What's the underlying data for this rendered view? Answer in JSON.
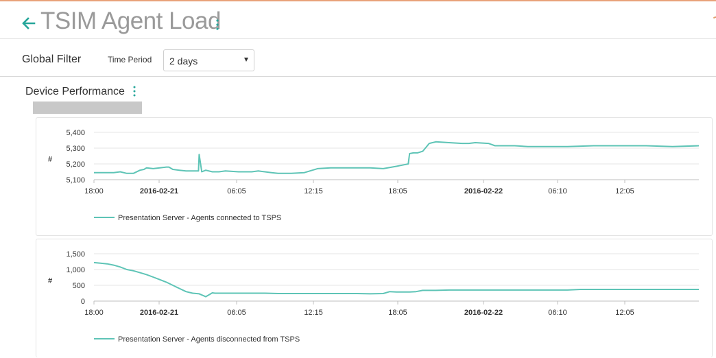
{
  "header": {
    "title": "TSIM Agent Load"
  },
  "filter": {
    "label": "Global Filter",
    "period_label": "Time Period",
    "period_value": "2 days"
  },
  "section": {
    "title": "Device Performance"
  },
  "colors": {
    "accent": "#26a69a",
    "series": "#5ec4b6",
    "grid": "#e6e6e6"
  },
  "x_axis_ticks": [
    {
      "label": "18:00",
      "bold": false
    },
    {
      "label": "2016-02-21",
      "bold": true
    },
    {
      "label": "06:05",
      "bold": false
    },
    {
      "label": "12:15",
      "bold": false
    },
    {
      "label": "18:05",
      "bold": false
    },
    {
      "label": "2016-02-22",
      "bold": true
    },
    {
      "label": "06:10",
      "bold": false
    },
    {
      "label": "12:05",
      "bold": false
    }
  ],
  "chart_data": [
    {
      "type": "line",
      "title": "",
      "ylabel": "#",
      "ylim": [
        5100,
        5400
      ],
      "yticks": [
        "5,100",
        "5,200",
        "5,300",
        "5,400"
      ],
      "grid": true,
      "legend": "bottom-left",
      "series": [
        {
          "name": "Presentation Server - Agents connected to TSPS",
          "x": [
            0,
            1,
            1.5,
            2,
            2.5,
            3,
            3.5,
            3.8,
            4,
            4.5,
            5,
            5.5,
            5.7,
            6,
            6.5,
            7,
            7.5,
            7.95,
            8,
            8.2,
            8.5,
            9,
            9.5,
            10,
            11,
            12,
            12.5,
            13,
            13.5,
            14,
            15,
            16,
            17,
            18,
            18.5,
            19,
            20,
            21,
            22,
            23,
            23.3,
            23.6,
            23.9,
            24,
            24.3,
            24.6,
            25,
            25.5,
            26,
            27,
            28,
            28.5,
            29,
            30,
            30.5,
            31,
            32,
            33,
            33.5,
            34,
            35,
            36,
            38,
            39,
            40,
            42,
            44,
            46
          ],
          "y": [
            5145,
            5145,
            5145,
            5150,
            5140,
            5140,
            5160,
            5165,
            5175,
            5170,
            5175,
            5180,
            5180,
            5165,
            5160,
            5155,
            5155,
            5155,
            5260,
            5150,
            5160,
            5150,
            5150,
            5155,
            5150,
            5150,
            5155,
            5150,
            5145,
            5140,
            5140,
            5145,
            5170,
            5175,
            5175,
            5175,
            5175,
            5175,
            5170,
            5185,
            5190,
            5195,
            5200,
            5265,
            5270,
            5270,
            5280,
            5330,
            5340,
            5335,
            5330,
            5330,
            5335,
            5330,
            5315,
            5315,
            5315,
            5310,
            5310,
            5310,
            5310,
            5310,
            5315,
            5315,
            5315,
            5315,
            5310,
            5315
          ]
        }
      ]
    },
    {
      "type": "line",
      "title": "",
      "ylabel": "#",
      "ylim": [
        0,
        1500
      ],
      "yticks": [
        "0",
        "500",
        "1,000",
        "1,500"
      ],
      "grid": true,
      "legend": "bottom-left",
      "series": [
        {
          "name": "Presentation Server - Agents disconnected from TSPS",
          "x": [
            0,
            0.5,
            1,
            1.5,
            2,
            2.5,
            3,
            3.5,
            4,
            4.5,
            5,
            5.5,
            6,
            6.5,
            7,
            7.5,
            8,
            8.5,
            9,
            9.2,
            9.5,
            10,
            11,
            12,
            13,
            14,
            15,
            16,
            17,
            18,
            19,
            20,
            21,
            22,
            22.5,
            23,
            24,
            24.5,
            25,
            26,
            27,
            28,
            29,
            30,
            31,
            32,
            33,
            34,
            35,
            36,
            37,
            38,
            39,
            40,
            41,
            42,
            43,
            44,
            45,
            46
          ],
          "y": [
            1220,
            1200,
            1180,
            1140,
            1080,
            1000,
            960,
            900,
            840,
            760,
            680,
            600,
            500,
            400,
            300,
            250,
            230,
            140,
            260,
            250,
            250,
            250,
            250,
            250,
            250,
            240,
            240,
            240,
            240,
            240,
            240,
            240,
            230,
            240,
            300,
            290,
            290,
            300,
            340,
            340,
            350,
            350,
            350,
            350,
            350,
            350,
            350,
            350,
            350,
            350,
            370,
            370,
            370,
            370,
            370,
            370,
            370,
            370,
            370,
            370
          ]
        }
      ]
    }
  ]
}
